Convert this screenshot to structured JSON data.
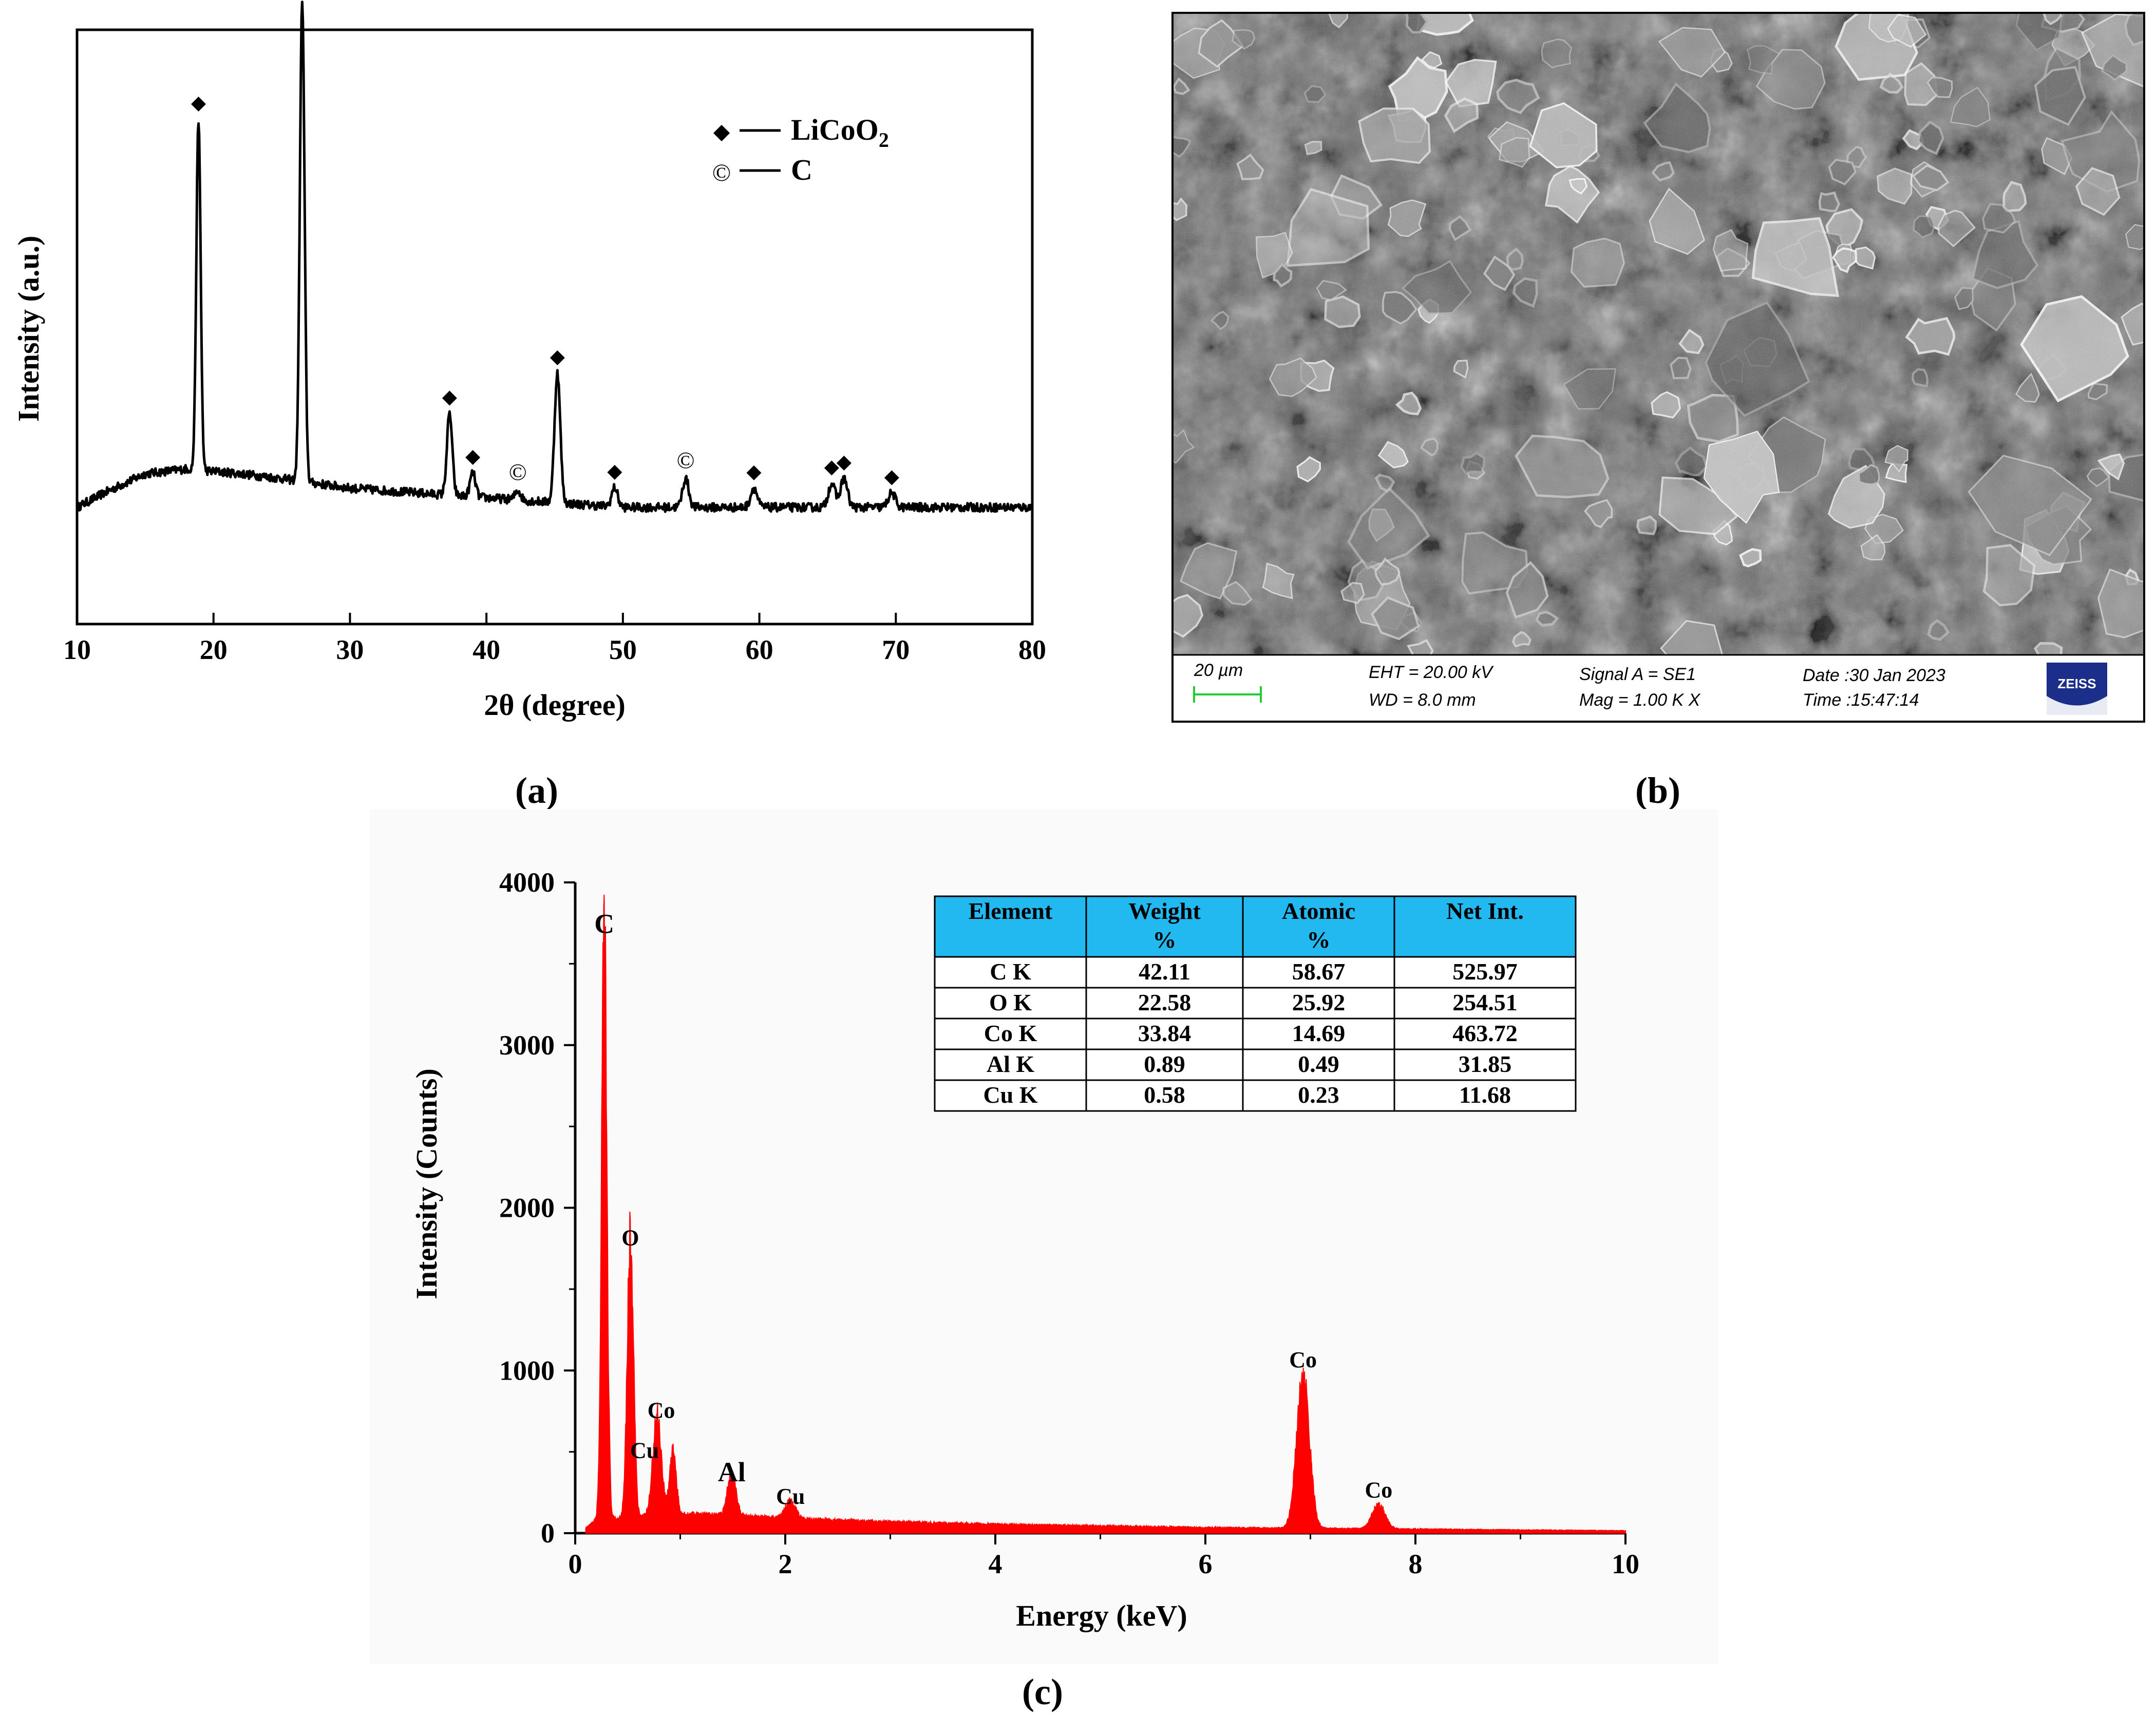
{
  "panel_labels": {
    "a": "(a)",
    "b": "(b)",
    "c": "(c)"
  },
  "chart_data": [
    {
      "id": "xrd",
      "type": "line",
      "xlabel": "2θ (degree)",
      "ylabel": "Intensity (a.u.)",
      "xlim": [
        10,
        80
      ],
      "xticks": [
        10,
        20,
        30,
        40,
        50,
        60,
        70,
        80
      ],
      "baseline": [
        [
          10,
          0.12
        ],
        [
          12,
          0.15
        ],
        [
          15,
          0.19
        ],
        [
          18,
          0.2
        ],
        [
          22,
          0.19
        ],
        [
          25,
          0.18
        ],
        [
          30,
          0.16
        ],
        [
          40,
          0.14
        ],
        [
          50,
          0.12
        ],
        [
          60,
          0.12
        ],
        [
          70,
          0.12
        ],
        [
          80,
          0.12
        ]
      ],
      "peaks": [
        {
          "x": 18.9,
          "height": 0.73,
          "phase": "LiCoO2"
        },
        {
          "x": 26.5,
          "height": 1.0,
          "phase": "C"
        },
        {
          "x": 37.3,
          "height": 0.17,
          "phase": "LiCoO2"
        },
        {
          "x": 39.0,
          "height": 0.05,
          "phase": "LiCoO2"
        },
        {
          "x": 42.3,
          "height": 0.02,
          "phase": "C"
        },
        {
          "x": 45.2,
          "height": 0.27,
          "phase": "LiCoO2"
        },
        {
          "x": 49.4,
          "height": 0.04,
          "phase": "LiCoO2"
        },
        {
          "x": 54.6,
          "height": 0.06,
          "phase": "C"
        },
        {
          "x": 59.6,
          "height": 0.04,
          "phase": "LiCoO2"
        },
        {
          "x": 65.3,
          "height": 0.05,
          "phase": "LiCoO2"
        },
        {
          "x": 66.2,
          "height": 0.06,
          "phase": "LiCoO2"
        },
        {
          "x": 69.7,
          "height": 0.03,
          "phase": "LiCoO2"
        }
      ],
      "legend": [
        {
          "marker": "diamond",
          "label": "LiCoO",
          "subscript": "2"
        },
        {
          "marker": "circled-c",
          "label": "C",
          "subscript": ""
        }
      ],
      "legend_position": "top-right",
      "markers": {
        "diamond": "◆",
        "circled-c": "©"
      }
    },
    {
      "id": "eds",
      "type": "area",
      "xlabel": "Energy (keV)",
      "ylabel": "Intensity (Counts)",
      "xlim": [
        0,
        10
      ],
      "ylim": [
        0,
        4000
      ],
      "xticks": [
        0,
        2,
        4,
        6,
        8,
        10
      ],
      "yticks": [
        0,
        1000,
        2000,
        3000,
        4000
      ],
      "color": "#ff0000",
      "background": [
        [
          0.1,
          30
        ],
        [
          0.2,
          80
        ],
        [
          1.0,
          120
        ],
        [
          1.5,
          110
        ],
        [
          2.0,
          90
        ],
        [
          3.0,
          70
        ],
        [
          4.0,
          55
        ],
        [
          5.0,
          45
        ],
        [
          6.0,
          35
        ],
        [
          7.0,
          30
        ],
        [
          8.0,
          25
        ],
        [
          9.0,
          20
        ],
        [
          10.0,
          15
        ]
      ],
      "peaks": [
        {
          "x": 0.277,
          "y": 3620,
          "w": 0.025
        },
        {
          "x": 0.525,
          "y": 1700,
          "w": 0.03
        },
        {
          "x": 0.78,
          "y": 620,
          "w": 0.04
        },
        {
          "x": 0.93,
          "y": 400,
          "w": 0.03
        },
        {
          "x": 1.49,
          "y": 250,
          "w": 0.04
        },
        {
          "x": 2.05,
          "y": 110,
          "w": 0.05
        },
        {
          "x": 6.93,
          "y": 950,
          "w": 0.06
        },
        {
          "x": 7.65,
          "y": 150,
          "w": 0.06
        }
      ],
      "peak_labels": [
        {
          "label": "C",
          "x": 0.277,
          "y": 3620
        },
        {
          "label": "O",
          "x": 0.525,
          "y": 1700
        },
        {
          "label": "Co",
          "x": 0.78,
          "y": 620
        },
        {
          "label": "Cu",
          "x": 0.7,
          "y": 400
        },
        {
          "label": "Al",
          "x": 1.49,
          "y": 250
        },
        {
          "label": "Cu",
          "x": 2.05,
          "y": 110
        },
        {
          "label": "Co",
          "x": 6.93,
          "y": 950
        },
        {
          "label": "Co",
          "x": 7.65,
          "y": 150
        }
      ]
    }
  ],
  "eds_table": {
    "headers": [
      [
        "Element",
        ""
      ],
      [
        "Weight",
        "%"
      ],
      [
        "Atomic",
        "%"
      ],
      [
        "Net Int.",
        ""
      ]
    ],
    "rows": [
      [
        "C K",
        "42.11",
        "58.67",
        "525.97"
      ],
      [
        "O K",
        "22.58",
        "25.92",
        "254.51"
      ],
      [
        "Co K",
        "33.84",
        "14.69",
        "463.72"
      ],
      [
        "Al K",
        "0.89",
        "0.49",
        "31.85"
      ],
      [
        "Cu K",
        "0.58",
        "0.23",
        "11.68"
      ]
    ],
    "header_color": "#22b8f0"
  },
  "sem": {
    "scale_label": "20 µm",
    "eht": "EHT = 20.00 kV",
    "wd": "WD =  8.0 mm",
    "signal": "Signal A = SE1",
    "mag": "Mag =    1.00 K X",
    "date": "Date :30 Jan 2023",
    "time": "Time :15:47:14",
    "logo": "ZEISS",
    "logo_color": "#1b2f8a",
    "scale_color": "#22cc33"
  }
}
